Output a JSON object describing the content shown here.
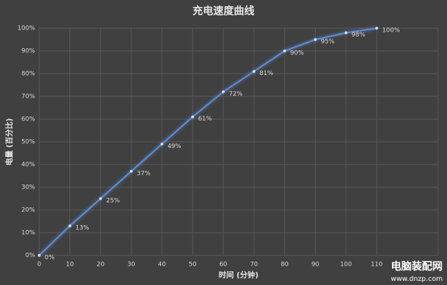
{
  "chart_data": {
    "type": "line",
    "title": "充电速度曲线",
    "x_label": "时间 (分钟)",
    "y_label": "电量 (百分比)",
    "x": [
      0,
      10,
      20,
      30,
      40,
      50,
      60,
      70,
      80,
      90,
      100,
      110
    ],
    "series": [
      {
        "name": "电量",
        "color": "#5b8fd6",
        "values": [
          0,
          13,
          25,
          37,
          49,
          61,
          72,
          81,
          90,
          95,
          98,
          100
        ],
        "value_labels": [
          "0%",
          "13%",
          "25%",
          "37%",
          "49%",
          "61%",
          "72%",
          "81%",
          "90%",
          "95%",
          "98%",
          "100%"
        ]
      }
    ],
    "xlim": [
      0,
      130
    ],
    "xticks": [
      0,
      10,
      20,
      30,
      40,
      50,
      60,
      70,
      80,
      90,
      100,
      110
    ],
    "ylim": [
      0,
      100
    ],
    "yticks": [
      {
        "value": 0,
        "label": "0%"
      },
      {
        "value": 10,
        "label": "10%"
      },
      {
        "value": 20,
        "label": "20%"
      },
      {
        "value": 30,
        "label": "30%"
      },
      {
        "value": 40,
        "label": "40%"
      },
      {
        "value": 50,
        "label": "50%"
      },
      {
        "value": 60,
        "label": "60%"
      },
      {
        "value": 70,
        "label": "70%"
      },
      {
        "value": 80,
        "label": "80%"
      },
      {
        "value": 90,
        "label": "90%"
      },
      {
        "value": 100,
        "label": "100%"
      }
    ],
    "grid": true
  },
  "watermark": {
    "name": "电脑装配网",
    "url": "www.dnzp.com"
  }
}
